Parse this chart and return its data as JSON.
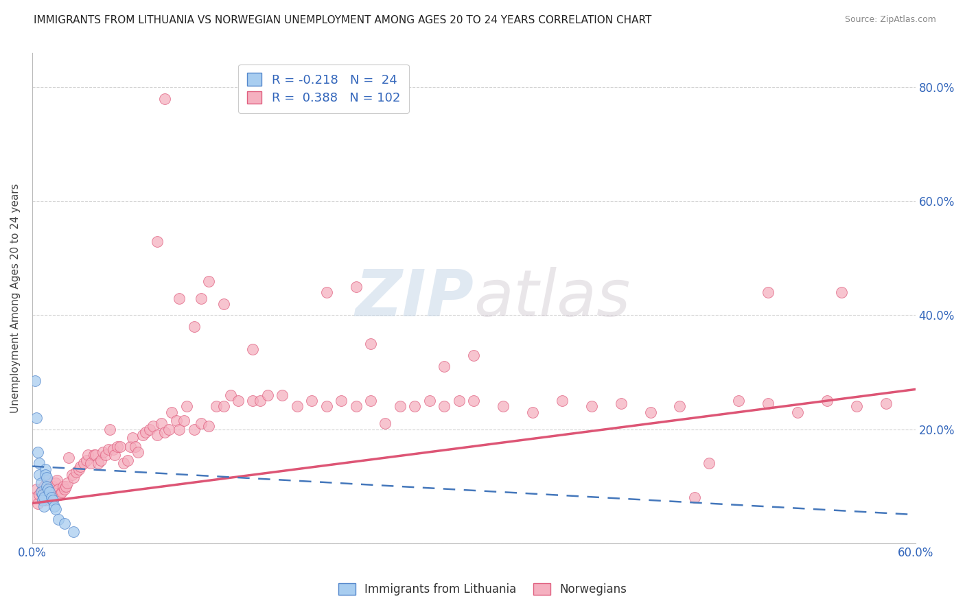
{
  "title": "IMMIGRANTS FROM LITHUANIA VS NORWEGIAN UNEMPLOYMENT AMONG AGES 20 TO 24 YEARS CORRELATION CHART",
  "source": "Source: ZipAtlas.com",
  "ylabel": "Unemployment Among Ages 20 to 24 years",
  "legend_label_blue": "Immigrants from Lithuania",
  "legend_label_pink": "Norwegians",
  "R_blue": -0.218,
  "N_blue": 24,
  "R_pink": 0.388,
  "N_pink": 102,
  "blue_color": "#a8cdf0",
  "pink_color": "#f5b0c0",
  "blue_edge_color": "#5588cc",
  "pink_edge_color": "#e06080",
  "blue_line_color": "#4477bb",
  "pink_line_color": "#dd5575",
  "xlim": [
    0.0,
    0.6
  ],
  "ylim": [
    0.0,
    0.86
  ],
  "ytick_vals": [
    0.0,
    0.2,
    0.4,
    0.6,
    0.8
  ],
  "ytick_labels": [
    "",
    "20.0%",
    "40.0%",
    "60.0%",
    "80.0%"
  ],
  "xtick_vals": [
    0.0,
    0.6
  ],
  "xtick_labels": [
    "0.0%",
    "60.0%"
  ],
  "grid_color": "#d0d0d0",
  "pink_trend_x0": 0.0,
  "pink_trend_y0": 0.07,
  "pink_trend_x1": 0.6,
  "pink_trend_y1": 0.27,
  "blue_trend_x0": 0.0,
  "blue_trend_y0": 0.135,
  "blue_trend_x1": 0.6,
  "blue_trend_y1": 0.05,
  "blue_scatter_x": [
    0.002,
    0.003,
    0.004,
    0.005,
    0.005,
    0.006,
    0.006,
    0.007,
    0.007,
    0.008,
    0.008,
    0.009,
    0.009,
    0.01,
    0.01,
    0.011,
    0.012,
    0.013,
    0.014,
    0.015,
    0.016,
    0.018,
    0.022,
    0.028
  ],
  "blue_scatter_y": [
    0.285,
    0.22,
    0.16,
    0.14,
    0.12,
    0.105,
    0.09,
    0.085,
    0.075,
    0.08,
    0.065,
    0.13,
    0.12,
    0.115,
    0.1,
    0.095,
    0.09,
    0.08,
    0.075,
    0.065,
    0.06,
    0.042,
    0.035,
    0.02
  ],
  "pink_scatter_x": [
    0.001,
    0.003,
    0.004,
    0.005,
    0.006,
    0.007,
    0.008,
    0.009,
    0.01,
    0.011,
    0.012,
    0.013,
    0.014,
    0.015,
    0.016,
    0.017,
    0.018,
    0.019,
    0.02,
    0.021,
    0.022,
    0.023,
    0.024,
    0.025,
    0.027,
    0.028,
    0.03,
    0.032,
    0.033,
    0.035,
    0.037,
    0.038,
    0.04,
    0.042,
    0.043,
    0.045,
    0.047,
    0.048,
    0.05,
    0.052,
    0.053,
    0.055,
    0.056,
    0.058,
    0.06,
    0.062,
    0.065,
    0.067,
    0.068,
    0.07,
    0.072,
    0.075,
    0.077,
    0.08,
    0.082,
    0.085,
    0.088,
    0.09,
    0.093,
    0.095,
    0.098,
    0.1,
    0.103,
    0.105,
    0.11,
    0.115,
    0.12,
    0.125,
    0.13,
    0.135,
    0.14,
    0.15,
    0.155,
    0.16,
    0.17,
    0.18,
    0.19,
    0.2,
    0.21,
    0.22,
    0.23,
    0.24,
    0.25,
    0.26,
    0.27,
    0.28,
    0.29,
    0.3,
    0.32,
    0.34,
    0.36,
    0.38,
    0.4,
    0.42,
    0.44,
    0.46,
    0.48,
    0.5,
    0.52,
    0.54,
    0.56,
    0.58
  ],
  "pink_scatter_y": [
    0.08,
    0.095,
    0.07,
    0.085,
    0.09,
    0.095,
    0.1,
    0.075,
    0.11,
    0.085,
    0.09,
    0.095,
    0.1,
    0.08,
    0.105,
    0.11,
    0.095,
    0.085,
    0.09,
    0.1,
    0.095,
    0.1,
    0.105,
    0.15,
    0.12,
    0.115,
    0.125,
    0.13,
    0.135,
    0.14,
    0.145,
    0.155,
    0.14,
    0.155,
    0.155,
    0.14,
    0.145,
    0.16,
    0.155,
    0.165,
    0.2,
    0.165,
    0.155,
    0.17,
    0.17,
    0.14,
    0.145,
    0.17,
    0.185,
    0.17,
    0.16,
    0.19,
    0.195,
    0.2,
    0.205,
    0.19,
    0.21,
    0.195,
    0.2,
    0.23,
    0.215,
    0.2,
    0.215,
    0.24,
    0.2,
    0.21,
    0.205,
    0.24,
    0.24,
    0.26,
    0.25,
    0.25,
    0.25,
    0.26,
    0.26,
    0.24,
    0.25,
    0.24,
    0.25,
    0.24,
    0.25,
    0.21,
    0.24,
    0.24,
    0.25,
    0.24,
    0.25,
    0.25,
    0.24,
    0.23,
    0.25,
    0.24,
    0.245,
    0.23,
    0.24,
    0.14,
    0.25,
    0.245,
    0.23,
    0.25,
    0.24,
    0.245
  ],
  "pink_outliers_x": [
    0.085,
    0.115,
    0.15,
    0.2,
    0.22,
    0.23,
    0.28,
    0.3,
    0.45,
    0.55
  ],
  "pink_outliers_y": [
    0.53,
    0.43,
    0.34,
    0.44,
    0.45,
    0.35,
    0.31,
    0.33,
    0.08,
    0.44
  ],
  "pink_high_x": [
    0.09,
    0.1,
    0.11,
    0.12,
    0.13,
    0.5
  ],
  "pink_high_y": [
    0.78,
    0.43,
    0.38,
    0.46,
    0.42,
    0.44
  ]
}
